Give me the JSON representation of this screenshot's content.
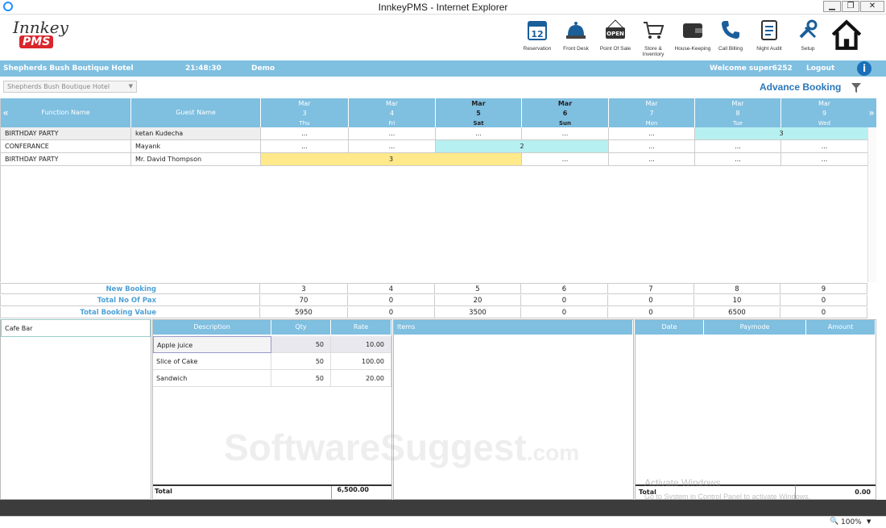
{
  "window": {
    "title": "InnkeyPMS - Internet Explorer",
    "minimize": "▁",
    "restore": "❐",
    "close": "✕"
  },
  "logo": {
    "line1": "Innkey",
    "line2": "PMS"
  },
  "toolbar": [
    {
      "label": "Reservation",
      "icon": "calendar-icon"
    },
    {
      "label": "Front Desk",
      "icon": "bell-icon"
    },
    {
      "label": "Point Of Sale",
      "icon": "open-sign-icon"
    },
    {
      "label": "Store & Inventory",
      "icon": "cart-icon"
    },
    {
      "label": "House-Keeping",
      "icon": "wallet-icon"
    },
    {
      "label": "Call Billing",
      "icon": "phone-icon"
    },
    {
      "label": "Night Audit",
      "icon": "clipboard-icon"
    },
    {
      "label": "Setup",
      "icon": "tools-icon"
    },
    {
      "label": "",
      "icon": "home-icon"
    }
  ],
  "infobar": {
    "hotel": "Shepherds Bush Boutique Hotel",
    "time": "21:48:30",
    "mode": "Demo",
    "welcome": "Welcome super6252",
    "logout": "Logout",
    "info": "i"
  },
  "subbar": {
    "hotel_select": "Shepherds Bush Boutique Hotel",
    "page_title": "Advance Booking"
  },
  "grid": {
    "prev": "«",
    "next": "»",
    "col_function": "Function Name",
    "col_guest": "Guest Name",
    "dates": [
      {
        "month": "Mar",
        "day": "3",
        "dow": "Thu",
        "bold": false
      },
      {
        "month": "Mar",
        "day": "4",
        "dow": "Fri",
        "bold": false
      },
      {
        "month": "Mar",
        "day": "5",
        "dow": "Sat",
        "bold": true
      },
      {
        "month": "Mar",
        "day": "6",
        "dow": "Sun",
        "bold": true
      },
      {
        "month": "Mar",
        "day": "7",
        "dow": "Mon",
        "bold": false
      },
      {
        "month": "Mar",
        "day": "8",
        "dow": "Tue",
        "bold": false
      },
      {
        "month": "Mar",
        "day": "9",
        "dow": "Wed",
        "bold": false
      }
    ],
    "rows": [
      {
        "function": "BIRTHDAY PARTY",
        "guest": "ketan Kudecha",
        "cells": [
          "...",
          "...",
          "...",
          "...",
          "..."
        ],
        "booking": {
          "start": 5,
          "span": 2,
          "value": "3",
          "color": "#b7f0f0"
        }
      },
      {
        "function": "CONFERANCE",
        "guest": "Mayank",
        "cells": [
          "...",
          "...",
          "...",
          "...",
          "..."
        ],
        "booking": {
          "start": 2,
          "span": 2,
          "value": "2",
          "color": "#b7f0f0"
        }
      },
      {
        "function": "BIRTHDAY PARTY",
        "guest": "Mr.  David Thompson",
        "cells": [
          "...",
          "...",
          "...",
          "...",
          "..."
        ],
        "booking": {
          "start": 0,
          "span": 3,
          "value": "3",
          "color": "#ffe98a"
        }
      }
    ]
  },
  "summary": [
    {
      "label": "New Booking",
      "values": [
        "3",
        "4",
        "5",
        "6",
        "7",
        "8",
        "9"
      ]
    },
    {
      "label": "Total No Of Pax",
      "values": [
        "70",
        "0",
        "20",
        "0",
        "0",
        "10",
        "0"
      ]
    },
    {
      "label": "Total Booking Value",
      "values": [
        "5950",
        "0",
        "3500",
        "0",
        "0",
        "6500",
        "0"
      ]
    }
  ],
  "outlet": {
    "name": "Cafe Bar"
  },
  "items_table": {
    "headers": [
      "Description",
      "Qty",
      "Rate"
    ],
    "rows": [
      {
        "description": "Apple juice",
        "qty": "50",
        "rate": "10.00"
      },
      {
        "description": "Slice of Cake",
        "qty": "50",
        "rate": "100.00"
      },
      {
        "description": "Sandwich",
        "qty": "50",
        "rate": "20.00"
      }
    ],
    "total_label": "Total",
    "total_value": "6,500.00"
  },
  "items_panel": {
    "header": "Items"
  },
  "payment_table": {
    "headers": [
      "Date",
      "Paymode",
      "Amount"
    ],
    "total_label": "Total",
    "total_value": "0.00"
  },
  "watermark": {
    "text": "SoftwareSuggest",
    "suffix": ".com"
  },
  "activate": {
    "line1": "Activate Windows",
    "line2": "Go to System in Control Panel to activate Windows."
  },
  "ie_status": {
    "zoom": "100%"
  },
  "colors": {
    "accent": "#7fbfe0",
    "title_blue": "#2a76b8",
    "highlight_cyan": "#b7f0f0",
    "highlight_yellow": "#ffe98a"
  }
}
